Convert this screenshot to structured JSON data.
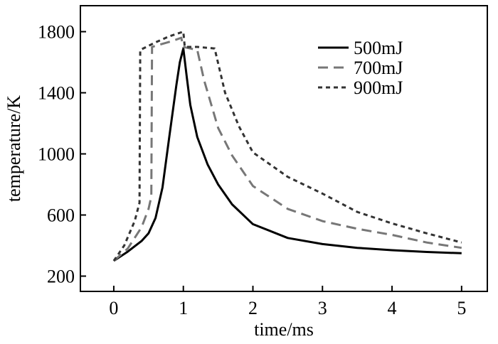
{
  "chart_data": {
    "type": "line",
    "title": "",
    "xlabel": "time/ms",
    "ylabel": "temperature/K",
    "xlim": [
      -0.48,
      5.37
    ],
    "ylim": [
      100,
      1970
    ],
    "xticks": [
      0,
      1,
      2,
      3,
      4,
      5
    ],
    "yticks": [
      200,
      600,
      1000,
      1400,
      1800
    ],
    "grid": false,
    "legend_position": "top-right",
    "series": [
      {
        "name": "500mJ",
        "style": "solid",
        "color": "#000000",
        "x": [
          0,
          0.2,
          0.4,
          0.5,
          0.6,
          0.7,
          0.8,
          0.9,
          0.95,
          1.0,
          1.05,
          1.1,
          1.2,
          1.35,
          1.5,
          1.7,
          2.0,
          2.5,
          3.0,
          3.5,
          4.0,
          4.5,
          5.0
        ],
        "y": [
          300,
          360,
          430,
          480,
          580,
          780,
          1120,
          1450,
          1600,
          1690,
          1500,
          1320,
          1110,
          930,
          800,
          670,
          540,
          450,
          410,
          385,
          370,
          358,
          350
        ]
      },
      {
        "name": "700mJ",
        "style": "long-dash",
        "color": "#777777",
        "x": [
          0,
          0.2,
          0.4,
          0.5,
          0.54,
          0.55,
          0.7,
          0.85,
          0.97,
          1.0,
          1.1,
          1.2,
          1.3,
          1.5,
          1.7,
          2.0,
          2.5,
          3.0,
          3.5,
          4.0,
          4.5,
          5.0
        ],
        "y": [
          300,
          380,
          520,
          640,
          720,
          1700,
          1720,
          1740,
          1760,
          1700,
          1690,
          1680,
          1480,
          1170,
          990,
          790,
          640,
          560,
          510,
          470,
          420,
          385
        ]
      },
      {
        "name": "900mJ",
        "style": "short-dash",
        "color": "#333333",
        "x": [
          0,
          0.15,
          0.3,
          0.37,
          0.38,
          0.6,
          0.8,
          1.0,
          1.02,
          1.2,
          1.45,
          1.6,
          1.8,
          2.0,
          2.5,
          3.0,
          3.5,
          4.0,
          4.5,
          5.0
        ],
        "y": [
          300,
          400,
          560,
          680,
          1680,
          1730,
          1770,
          1800,
          1700,
          1700,
          1690,
          1400,
          1180,
          1010,
          850,
          740,
          620,
          545,
          480,
          420
        ]
      }
    ]
  }
}
